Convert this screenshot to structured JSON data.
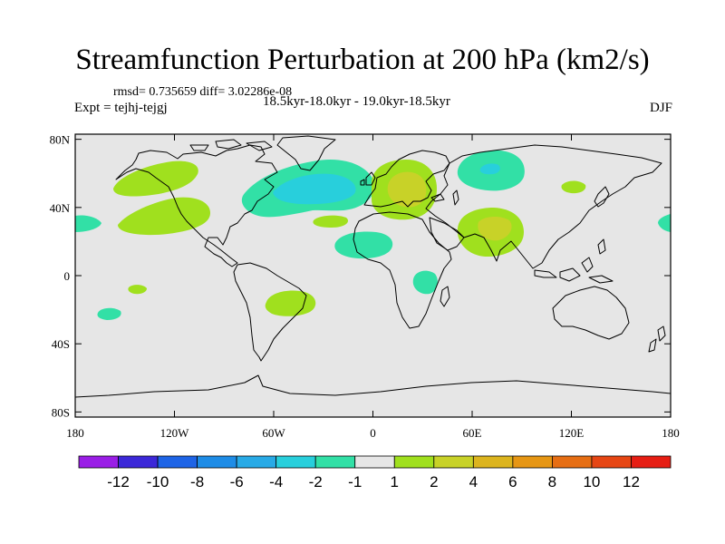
{
  "header": {
    "title": "Streamfunction Perturbation at 200 hPa (km2/s)",
    "stats": "rmsd= 0.735659 diff= 3.02286e-08",
    "experiment": "Expt = tejhj-tejgj",
    "period": "18.5kyr-18.0kyr - 19.0kyr-18.5kyr",
    "season": "DJF"
  },
  "axes": {
    "lat_labels": [
      "80N",
      "40N",
      "0",
      "40S",
      "80S"
    ],
    "lon_labels": [
      "180",
      "120W",
      "60W",
      "0",
      "60E",
      "120E",
      "180"
    ]
  },
  "colorbar": {
    "colors": [
      "#9a1ee6",
      "#3c28d8",
      "#1e64e6",
      "#1e8ce6",
      "#28aae6",
      "#28cfdc",
      "#32e0a6",
      "#e6e6e6",
      "#a0e01e",
      "#c8d228",
      "#dcb41e",
      "#e69614",
      "#e66e14",
      "#e64614",
      "#e61e14"
    ],
    "labels": [
      "-12",
      "-10",
      "-8",
      "-6",
      "-4",
      "-2",
      "-1",
      "1",
      "2",
      "4",
      "6",
      "8",
      "10",
      "12"
    ]
  },
  "map_style": {
    "land_sea_fill": "#e6e6e6",
    "coastline_color": "#000000"
  }
}
